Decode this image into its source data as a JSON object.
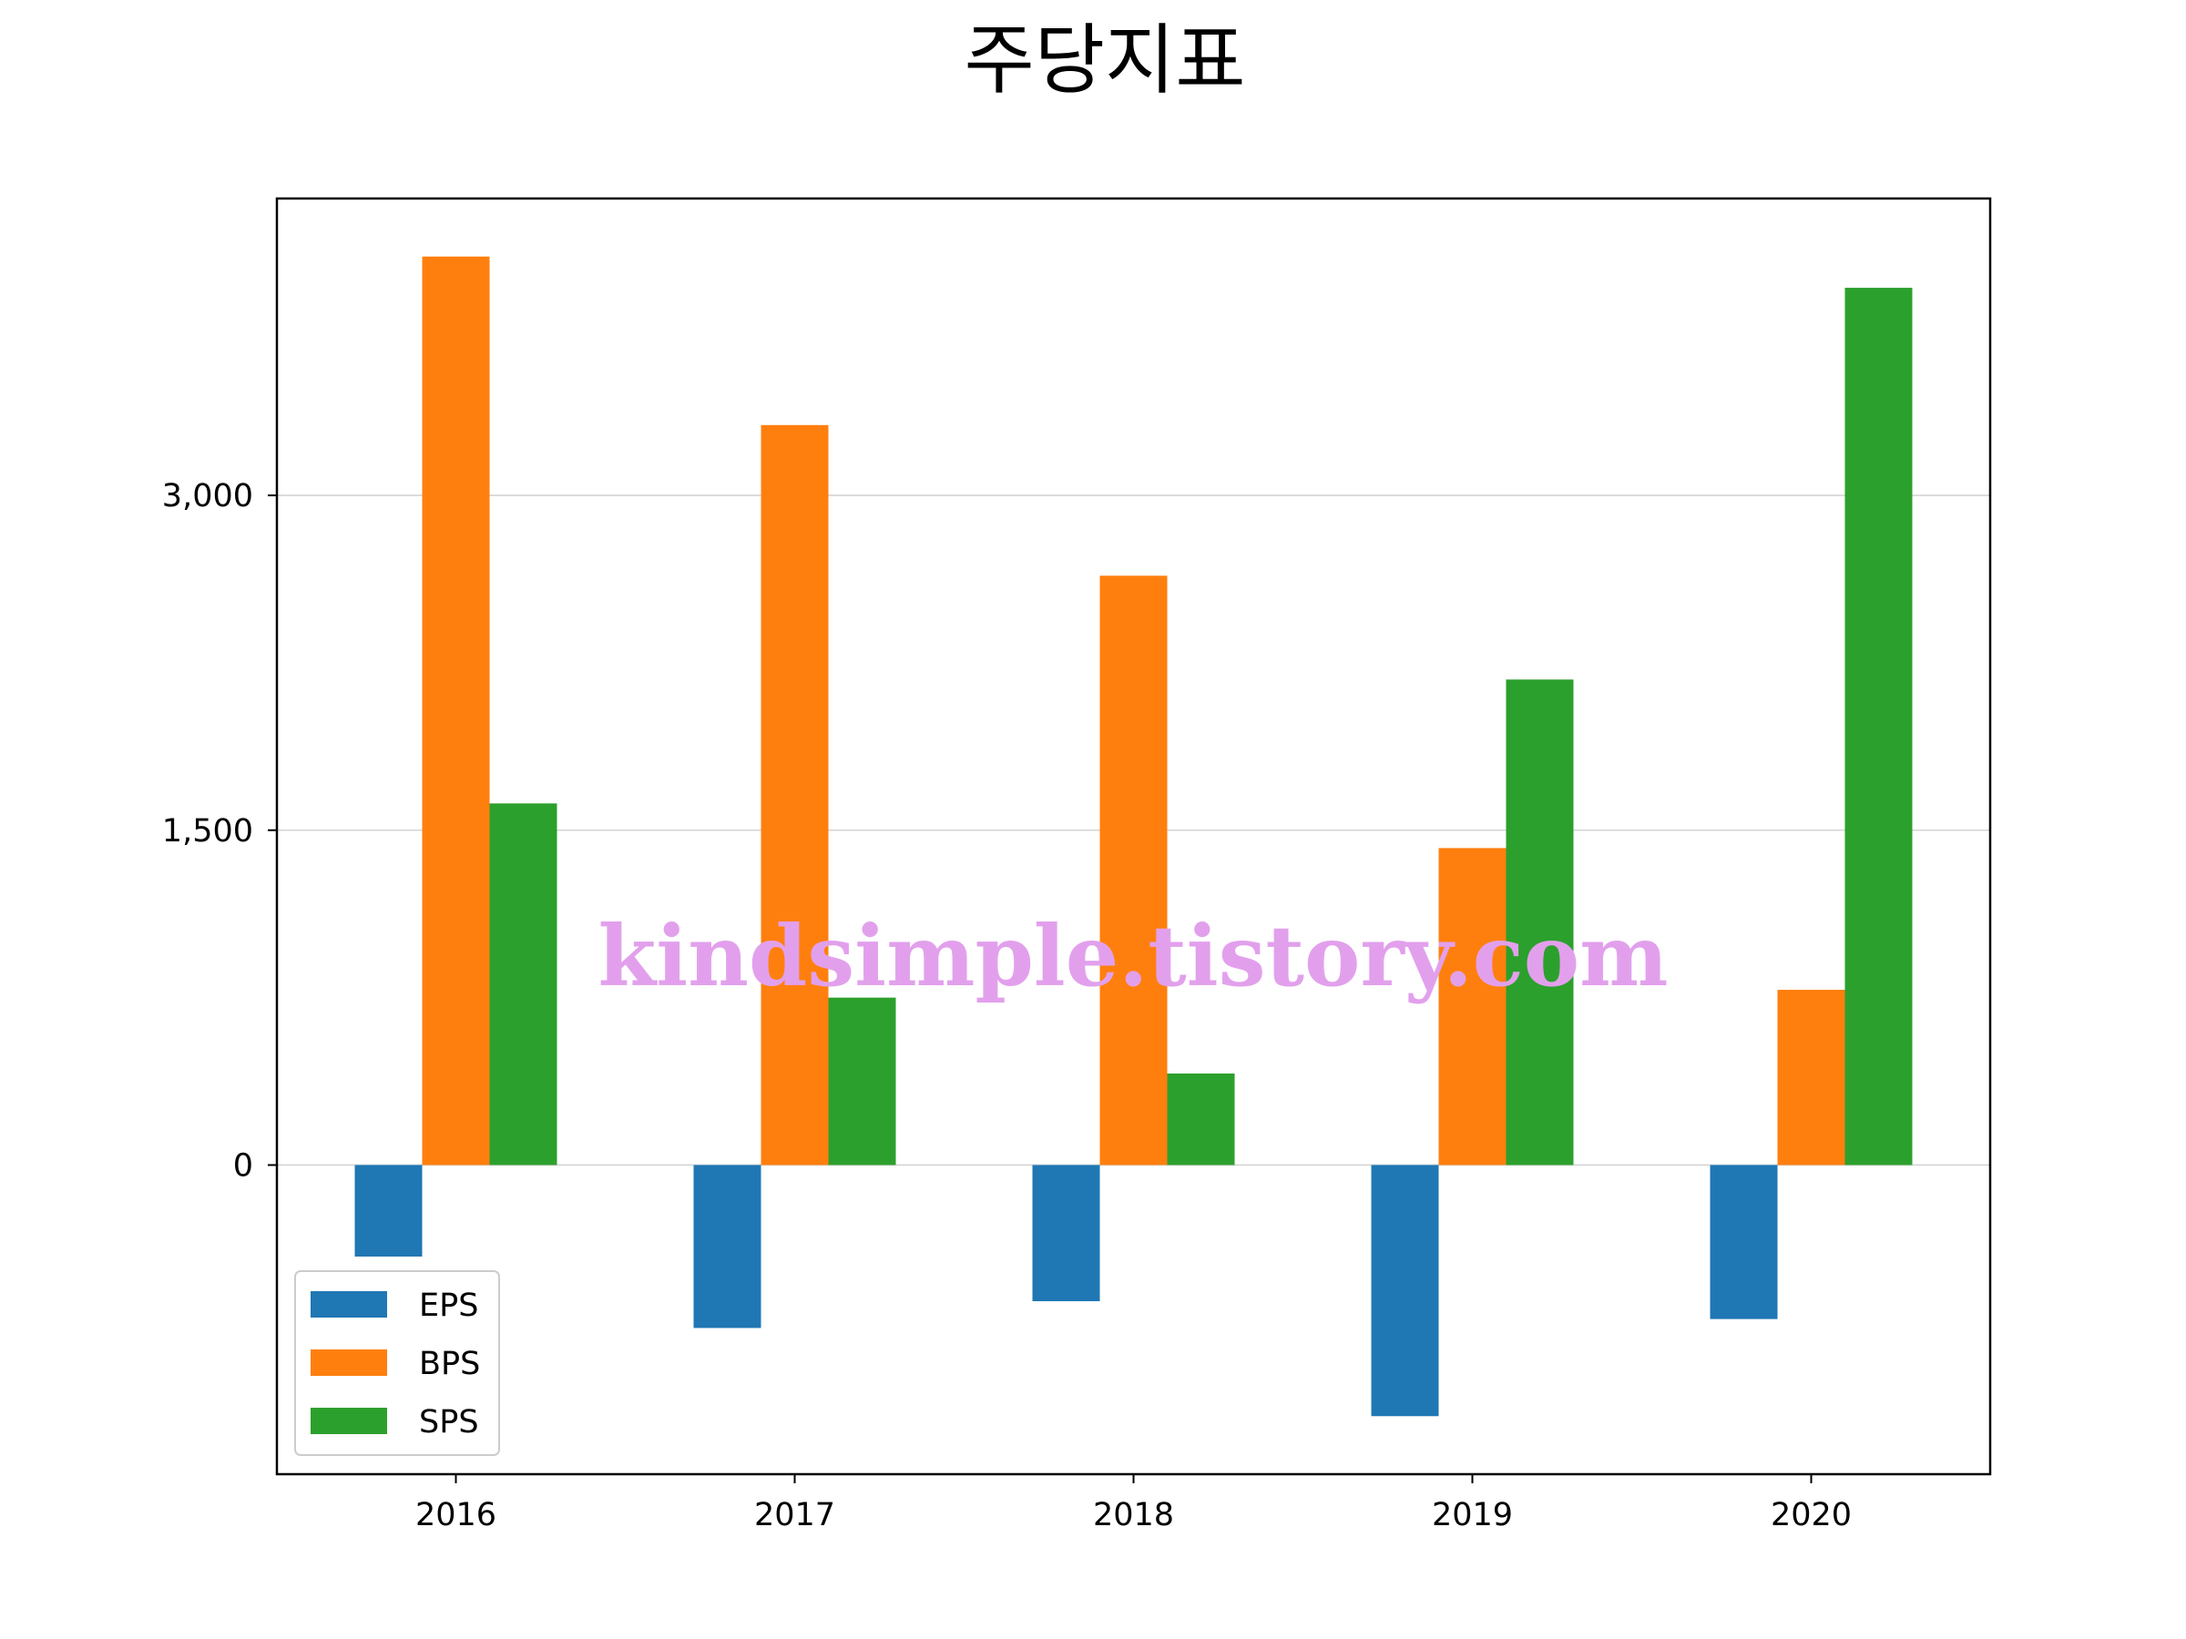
{
  "chart_data": {
    "type": "bar",
    "title": "주당지표",
    "xlabel": "",
    "ylabel": "",
    "categories": [
      "2016",
      "2017",
      "2018",
      "2019",
      "2020"
    ],
    "series": [
      {
        "name": "EPS",
        "color": "#1f77b4",
        "values": [
          -410,
          -730,
          -610,
          -1125,
          -690
        ]
      },
      {
        "name": "BPS",
        "color": "#ff7f0e",
        "values": [
          4070,
          3315,
          2640,
          1420,
          785
        ]
      },
      {
        "name": "SPS",
        "color": "#2ca02c",
        "values": [
          1620,
          750,
          410,
          2175,
          3930
        ]
      }
    ],
    "ylim": [
      -1385,
      4330
    ],
    "yticks": [
      0,
      1500,
      3000
    ],
    "ytick_labels": [
      "0",
      "1,500",
      "3,000"
    ],
    "grid": "y",
    "legend": "lower-left"
  },
  "watermark": "kindsimple.tistory.com"
}
